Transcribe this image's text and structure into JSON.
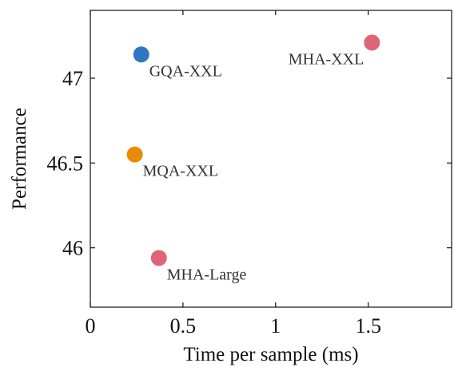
{
  "chart_data": {
    "type": "scatter",
    "xlabel": "Time per sample (ms)",
    "ylabel": "Performance",
    "xlim": [
      0,
      1.95
    ],
    "ylim": [
      45.65,
      47.4
    ],
    "xticks": [
      0,
      0.5,
      1,
      1.5
    ],
    "xtick_labels": [
      "0",
      "0.5",
      "1",
      "1.5"
    ],
    "yticks": [
      46,
      46.5,
      47
    ],
    "ytick_labels": [
      "46",
      "46.5",
      "47"
    ],
    "grid": false,
    "points": [
      {
        "label": "MHA-XXL",
        "x": 1.52,
        "y": 47.21,
        "color": "#e06477",
        "label_side": "left"
      },
      {
        "label": "GQA-XXL",
        "x": 0.275,
        "y": 47.14,
        "color": "#2f77c2",
        "label_side": "right"
      },
      {
        "label": "MQA-XXL",
        "x": 0.24,
        "y": 46.55,
        "color": "#ea8a00",
        "label_side": "right"
      },
      {
        "label": "MHA-Large",
        "x": 0.37,
        "y": 45.94,
        "color": "#e06477",
        "label_side": "right"
      }
    ]
  }
}
